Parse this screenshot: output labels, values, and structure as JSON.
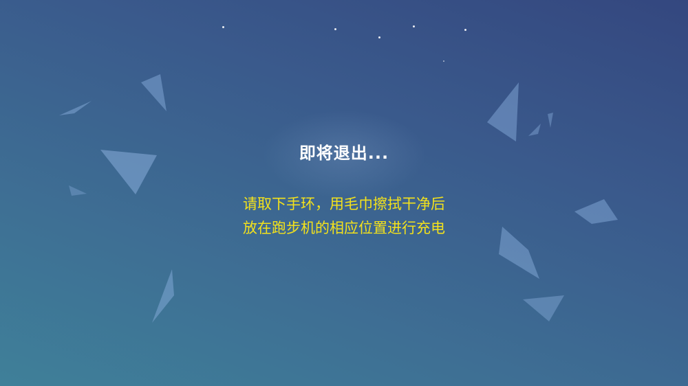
{
  "dialog": {
    "title": "即将退出...",
    "message_lines": [
      "请取下手环，用毛巾擦拭干净后",
      "放在跑步机的相应位置进行充电"
    ]
  },
  "colors": {
    "title": "#ffffff",
    "message": "#f4e21b",
    "background_top": "#34477f",
    "background_bottom": "#3f8099"
  }
}
